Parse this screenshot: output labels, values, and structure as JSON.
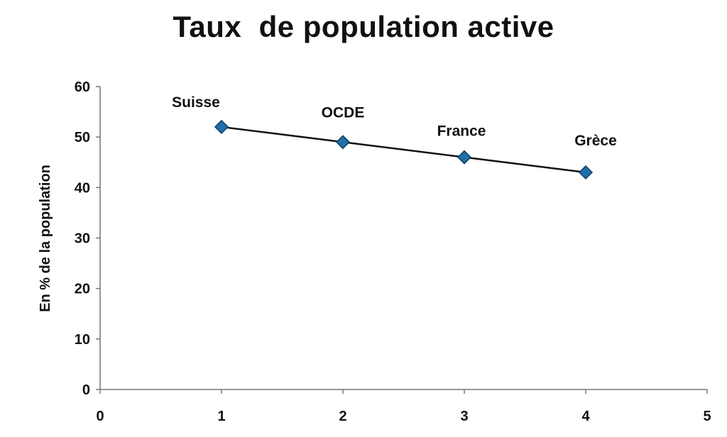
{
  "chart_data": {
    "type": "scatter",
    "title": "Taux  de population active",
    "xlabel": "",
    "ylabel": "En % de la population",
    "xlim": [
      0,
      5
    ],
    "ylim": [
      0,
      60
    ],
    "xticks": [
      0,
      1,
      2,
      3,
      4,
      5
    ],
    "yticks": [
      0,
      10,
      20,
      30,
      40,
      50,
      60
    ],
    "grid": false,
    "legend": "none",
    "connected_line": true,
    "marker": "diamond",
    "marker_color": "#1f6fa8",
    "line_color": "#111111",
    "points": [
      {
        "label": "Suisse",
        "x": 1,
        "y": 52
      },
      {
        "label": "OCDE",
        "x": 2,
        "y": 49
      },
      {
        "label": "France",
        "x": 3,
        "y": 46
      },
      {
        "label": "Grèce",
        "x": 4,
        "y": 43
      }
    ]
  }
}
